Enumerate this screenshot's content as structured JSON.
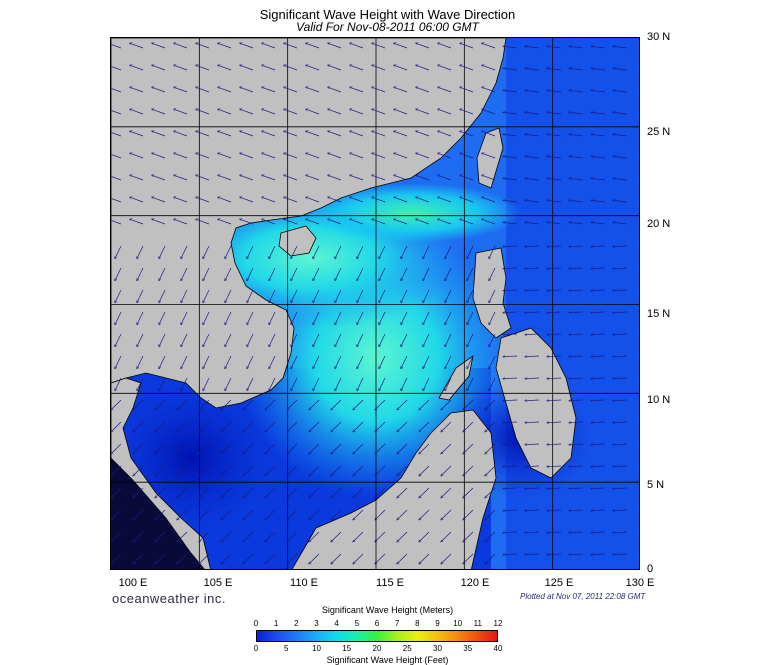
{
  "title": "Significant Wave Height with Wave Direction",
  "subtitle": "Valid For Nov-08-2011 06:00 GMT",
  "brand": "oceanweather inc.",
  "plotted": "Plotted at Nov 07, 2011 22:08 GMT",
  "latitude_labels": [
    "30 N",
    "25 N",
    "20 N",
    "15 N",
    "10 N",
    "5 N",
    "0"
  ],
  "longitude_labels": [
    "100 E",
    "105 E",
    "110 E",
    "115 E",
    "120 E",
    "125 E",
    "130 E"
  ],
  "legend": {
    "meters_title": "Significant Wave Height (Meters)",
    "feet_title": "Significant Wave Height (Feet)",
    "meters_ticks": [
      "0",
      "1",
      "2",
      "3",
      "4",
      "5",
      "6",
      "7",
      "8",
      "9",
      "10",
      "11",
      "12"
    ],
    "feet_ticks": [
      "0",
      "5",
      "10",
      "15",
      "20",
      "25",
      "30",
      "35",
      "40"
    ],
    "colors": [
      "#0a1fd6",
      "#1e4cf0",
      "#1f7df5",
      "#19aef5",
      "#10dcec",
      "#18f0a8",
      "#38f040",
      "#a6f020",
      "#e6f010",
      "#f5c010",
      "#f58a10",
      "#f05010",
      "#e01818"
    ]
  },
  "colors": {
    "land": "#c0c0c0",
    "sea_deep": "#0a2fd6",
    "sea_mid": "#1e70f5",
    "sea_light": "#19c0f0",
    "sea_peak": "#30f0c0",
    "grid": "#000000",
    "arrow": "#1a1a80"
  }
}
